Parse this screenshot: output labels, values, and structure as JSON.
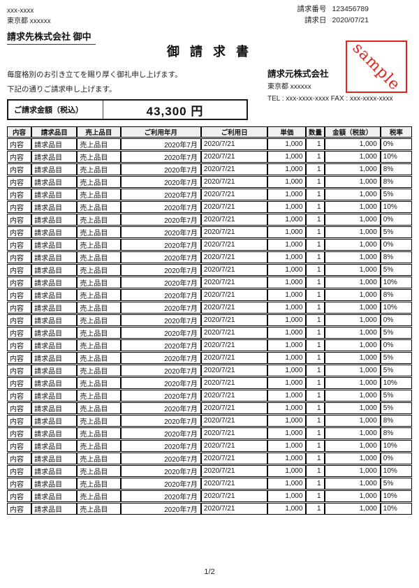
{
  "recipient": {
    "postal_code": "xxx-xxxx",
    "address": "東京都 xxxxxx",
    "name": "請求先株式会社 御中"
  },
  "invoice_meta": {
    "number_label": "請求番号",
    "number_value": "123456789",
    "date_label": "請求日",
    "date_value": "2020/07/21"
  },
  "title": "御 請 求 書",
  "stamp": {
    "text": "sample",
    "color": "#e2231a"
  },
  "greeting": {
    "line1": "毎度格別のお引き立てを賜り厚く御礼申し上げます。",
    "line2": "下記の通りご請求申し上げます。"
  },
  "issuer": {
    "name": "請求元株式会社",
    "address": "東京都 xxxxxx",
    "tel_fax": "TEL : xxx-xxxx-xxxx FAX : xxx-xxxx-xxxx"
  },
  "total_box": {
    "label": "ご請求金額（税込）",
    "amount": "43,300 円"
  },
  "table": {
    "headers": [
      "内容",
      "請求品目",
      "売上品目",
      "ご利用年月",
      "ご利用日",
      "単価",
      "数量",
      "金額（税抜）",
      "税率"
    ],
    "rows": [
      [
        "内容",
        "請求品目",
        "売上品目",
        "2020年7月",
        "2020/7/21",
        "1,000",
        "1",
        "1,000",
        "0%"
      ],
      [
        "内容",
        "請求品目",
        "売上品目",
        "2020年7月",
        "2020/7/21",
        "1,000",
        "1",
        "1,000",
        "10%"
      ],
      [
        "内容",
        "請求品目",
        "売上品目",
        "2020年7月",
        "2020/7/21",
        "1,000",
        "1",
        "1,000",
        "8%"
      ],
      [
        "内容",
        "請求品目",
        "売上品目",
        "2020年7月",
        "2020/7/21",
        "1,000",
        "1",
        "1,000",
        "8%"
      ],
      [
        "内容",
        "請求品目",
        "売上品目",
        "2020年7月",
        "2020/7/21",
        "1,000",
        "1",
        "1,000",
        "5%"
      ],
      [
        "内容",
        "請求品目",
        "売上品目",
        "2020年7月",
        "2020/7/21",
        "1,000",
        "1",
        "1,000",
        "10%"
      ],
      [
        "内容",
        "請求品目",
        "売上品目",
        "2020年7月",
        "2020/7/21",
        "1,000",
        "1",
        "1,000",
        "0%"
      ],
      [
        "内容",
        "請求品目",
        "売上品目",
        "2020年7月",
        "2020/7/21",
        "1,000",
        "1",
        "1,000",
        "5%"
      ],
      [
        "内容",
        "請求品目",
        "売上品目",
        "2020年7月",
        "2020/7/21",
        "1,000",
        "1",
        "1,000",
        "0%"
      ],
      [
        "内容",
        "請求品目",
        "売上品目",
        "2020年7月",
        "2020/7/21",
        "1,000",
        "1",
        "1,000",
        "8%"
      ],
      [
        "内容",
        "請求品目",
        "売上品目",
        "2020年7月",
        "2020/7/21",
        "1,000",
        "1",
        "1,000",
        "5%"
      ],
      [
        "内容",
        "請求品目",
        "売上品目",
        "2020年7月",
        "2020/7/21",
        "1,000",
        "1",
        "1,000",
        "10%"
      ],
      [
        "内容",
        "請求品目",
        "売上品目",
        "2020年7月",
        "2020/7/21",
        "1,000",
        "1",
        "1,000",
        "8%"
      ],
      [
        "内容",
        "請求品目",
        "売上品目",
        "2020年7月",
        "2020/7/21",
        "1,000",
        "1",
        "1,000",
        "10%"
      ],
      [
        "内容",
        "請求品目",
        "売上品目",
        "2020年7月",
        "2020/7/21",
        "1,000",
        "1",
        "1,000",
        "0%"
      ],
      [
        "内容",
        "請求品目",
        "売上品目",
        "2020年7月",
        "2020/7/21",
        "1,000",
        "1",
        "1,000",
        "5%"
      ],
      [
        "内容",
        "請求品目",
        "売上品目",
        "2020年7月",
        "2020/7/21",
        "1,000",
        "1",
        "1,000",
        "0%"
      ],
      [
        "内容",
        "請求品目",
        "売上品目",
        "2020年7月",
        "2020/7/21",
        "1,000",
        "1",
        "1,000",
        "5%"
      ],
      [
        "内容",
        "請求品目",
        "売上品目",
        "2020年7月",
        "2020/7/21",
        "1,000",
        "1",
        "1,000",
        "5%"
      ],
      [
        "内容",
        "請求品目",
        "売上品目",
        "2020年7月",
        "2020/7/21",
        "1,000",
        "1",
        "1,000",
        "10%"
      ],
      [
        "内容",
        "請求品目",
        "売上品目",
        "2020年7月",
        "2020/7/21",
        "1,000",
        "1",
        "1,000",
        "5%"
      ],
      [
        "内容",
        "請求品目",
        "売上品目",
        "2020年7月",
        "2020/7/21",
        "1,000",
        "1",
        "1,000",
        "5%"
      ],
      [
        "内容",
        "請求品目",
        "売上品目",
        "2020年7月",
        "2020/7/21",
        "1,000",
        "1",
        "1,000",
        "8%"
      ],
      [
        "内容",
        "請求品目",
        "売上品目",
        "2020年7月",
        "2020/7/21",
        "1,000",
        "1",
        "1,000",
        "8%"
      ],
      [
        "内容",
        "請求品目",
        "売上品目",
        "2020年7月",
        "2020/7/21",
        "1,000",
        "1",
        "1,000",
        "10%"
      ],
      [
        "内容",
        "請求品目",
        "売上品目",
        "2020年7月",
        "2020/7/21",
        "1,000",
        "1",
        "1,000",
        "0%"
      ],
      [
        "内容",
        "請求品目",
        "売上品目",
        "2020年7月",
        "2020/7/21",
        "1,000",
        "1",
        "1,000",
        "10%"
      ],
      [
        "内容",
        "請求品目",
        "売上品目",
        "2020年7月",
        "2020/7/21",
        "1,000",
        "1",
        "1,000",
        "5%"
      ],
      [
        "内容",
        "請求品目",
        "売上品目",
        "2020年7月",
        "2020/7/21",
        "1,000",
        "1",
        "1,000",
        "10%"
      ],
      [
        "内容",
        "請求品目",
        "売上品目",
        "2020年7月",
        "2020/7/21",
        "1,000",
        "1",
        "1,000",
        "10%"
      ]
    ]
  },
  "page": {
    "footer": "1/2"
  },
  "colors": {
    "accent_red": "#e2231a",
    "header_bg": "#f0f0f0",
    "border": "#000000"
  }
}
